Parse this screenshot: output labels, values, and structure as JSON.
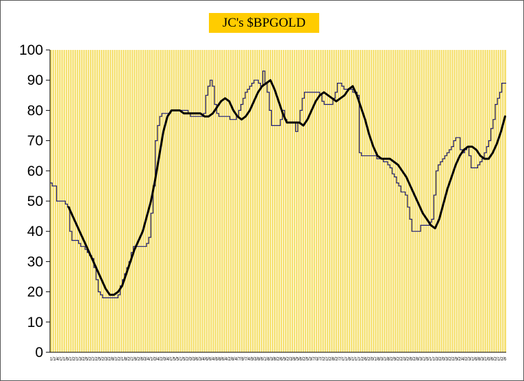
{
  "chart_data": {
    "type": "line",
    "title": "JC's $BPGOLD",
    "xlabel": "",
    "ylabel": "",
    "ylim": [
      0,
      100
    ],
    "yticks": [
      0,
      10,
      20,
      30,
      40,
      50,
      60,
      70,
      80,
      90,
      100
    ],
    "grid": "vertical",
    "colors": {
      "plot_bg": "#f5e06e",
      "grid": "#ffffff",
      "raw_line": "#1a1a7a",
      "smooth_line": "#000000",
      "title_bg": "#ffcc00"
    },
    "series": [
      {
        "style": "step",
        "values": [
          56,
          55,
          55,
          50,
          50,
          50,
          50,
          49,
          48,
          40,
          37,
          37,
          37,
          36,
          35,
          35,
          34,
          33,
          32,
          31,
          28,
          24,
          20,
          19,
          18,
          18,
          18,
          18,
          18,
          18,
          18,
          19,
          22,
          24,
          26,
          28,
          30,
          33,
          35,
          35,
          35,
          35,
          35,
          35,
          36,
          38,
          46,
          55,
          70,
          75,
          78,
          79,
          79,
          79,
          79,
          80,
          80,
          80,
          80,
          80,
          80,
          80,
          80,
          79,
          78,
          78,
          78,
          78,
          78,
          78,
          79,
          85,
          88,
          90,
          88,
          82,
          79,
          78,
          78,
          78,
          78,
          78,
          77,
          77,
          77,
          78,
          80,
          82,
          84,
          86,
          87,
          88,
          89,
          90,
          90,
          89,
          88,
          93,
          89,
          86,
          80,
          75,
          75,
          75,
          75,
          77,
          80,
          77,
          76,
          76,
          76,
          76,
          73,
          76,
          80,
          84,
          86,
          86,
          86,
          86,
          86,
          86,
          86,
          85,
          83,
          82,
          82,
          82,
          82,
          84,
          86,
          89,
          89,
          88,
          87,
          87,
          87,
          87,
          86,
          86,
          85,
          66,
          65,
          65,
          65,
          65,
          65,
          65,
          65,
          64,
          64,
          64,
          63,
          63,
          62,
          61,
          59,
          58,
          56,
          55,
          53,
          53,
          52,
          48,
          44,
          40,
          40,
          40,
          40,
          42,
          42,
          42,
          42,
          43,
          44,
          52,
          60,
          62,
          63,
          64,
          65,
          66,
          67,
          68,
          70,
          71,
          71,
          67,
          66,
          67,
          68,
          65,
          61,
          61,
          61,
          62,
          63,
          64,
          66,
          68,
          70,
          74,
          77,
          82,
          84,
          86,
          89,
          89
        ]
      },
      {
        "style": "smooth",
        "start_index": 8,
        "values": [
          48,
          45,
          42,
          39,
          36,
          33,
          30,
          27,
          24,
          21,
          19,
          19,
          20,
          22,
          26,
          30,
          34,
          37,
          40,
          45,
          50,
          57,
          65,
          73,
          78,
          80,
          80,
          80,
          79,
          79,
          79,
          79,
          79,
          78,
          78,
          79,
          81,
          83,
          84,
          83,
          80,
          78,
          77,
          78,
          80,
          83,
          86,
          88,
          89,
          90,
          87,
          83,
          79,
          76,
          76,
          76,
          76,
          75,
          77,
          80,
          83,
          85,
          86,
          85,
          84,
          83,
          84,
          85,
          87,
          88,
          85,
          81,
          77,
          72,
          68,
          65,
          64,
          64,
          64,
          63,
          62,
          60,
          58,
          55,
          52,
          49,
          46,
          44,
          42,
          41,
          44,
          49,
          54,
          58,
          62,
          65,
          67,
          68,
          68,
          67,
          65,
          64,
          64,
          66,
          69,
          73,
          78
        ]
      }
    ],
    "x_tick_labels": "1/1/4/1/1/6/1/2/1/3/2/5/2/1/2/5/2/3/2/8/1/2/1/8/2/1/9/2/6/3/4/1/0/4/2/0/4/1/5/5/1/5/2/0/3/6/3/4/6/6/4/6/8/6/4/2/8/4/7/9/7/4/9/3/8/6/1/8/3/8/2/6/9/2/3/9/5/6/2/5/3/7/3/7/2/1/2/8/2/7/1/1/6/1/1/1/2/6/2/0/1/8/3/1/8/2/9/2/2/3/2/6/2/8/3/1/5/1/1/3/2/0/3/2/2/9/2/4/2/3/1/6/8/3/1/0/6/2/1/2/6"
  }
}
